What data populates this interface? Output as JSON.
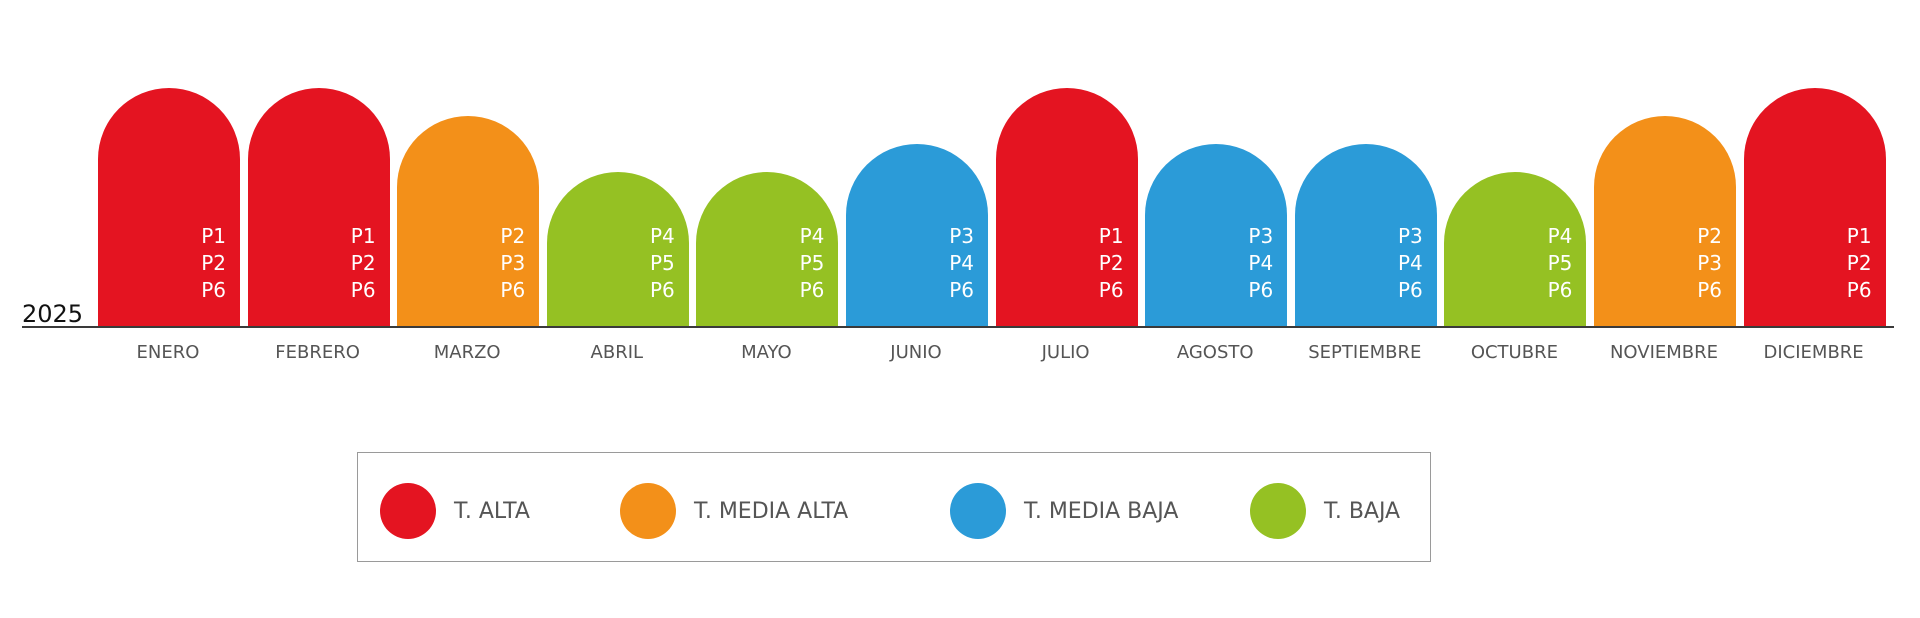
{
  "year_label": "2025",
  "colors": {
    "alta": "#e41421",
    "media_alta": "#f39019",
    "media_baja": "#2b9bd8",
    "baja": "#95c123"
  },
  "months": [
    {
      "name": "ENERO",
      "season": "alta",
      "periods": [
        "P1",
        "P2",
        "P6"
      ]
    },
    {
      "name": "FEBRERO",
      "season": "alta",
      "periods": [
        "P1",
        "P2",
        "P6"
      ]
    },
    {
      "name": "MARZO",
      "season": "media_alta",
      "periods": [
        "P2",
        "P3",
        "P6"
      ]
    },
    {
      "name": "ABRIL",
      "season": "baja",
      "periods": [
        "P4",
        "P5",
        "P6"
      ]
    },
    {
      "name": "MAYO",
      "season": "baja",
      "periods": [
        "P4",
        "P5",
        "P6"
      ]
    },
    {
      "name": "JUNIO",
      "season": "media_baja",
      "periods": [
        "P3",
        "P4",
        "P6"
      ]
    },
    {
      "name": "JULIO",
      "season": "alta",
      "periods": [
        "P1",
        "P2",
        "P6"
      ]
    },
    {
      "name": "AGOSTO",
      "season": "media_baja",
      "periods": [
        "P3",
        "P4",
        "P6"
      ]
    },
    {
      "name": "SEPTIEMBRE",
      "season": "media_baja",
      "periods": [
        "P3",
        "P4",
        "P6"
      ]
    },
    {
      "name": "OCTUBRE",
      "season": "baja",
      "periods": [
        "P4",
        "P5",
        "P6"
      ]
    },
    {
      "name": "NOVIEMBRE",
      "season": "media_alta",
      "periods": [
        "P2",
        "P3",
        "P6"
      ]
    },
    {
      "name": "DICIEMBRE",
      "season": "alta",
      "periods": [
        "P1",
        "P2",
        "P6"
      ]
    }
  ],
  "legend": [
    {
      "season": "alta",
      "label": "T. ALTA"
    },
    {
      "season": "media_alta",
      "label": "T. MEDIA ALTA"
    },
    {
      "season": "media_baja",
      "label": "T. MEDIA BAJA"
    },
    {
      "season": "baja",
      "label": "T. BAJA"
    }
  ]
}
